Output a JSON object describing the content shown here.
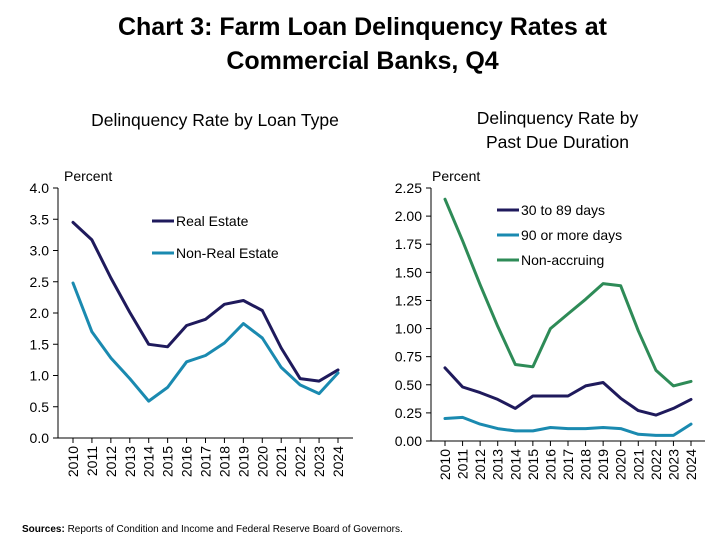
{
  "main_title_line1": "Chart 3: Farm Loan Delinquency Rates at",
  "main_title_line2": "Commercial Banks, Q4",
  "source_label": "Sources:",
  "source_text": "Reports of Condition and Income and Federal Reserve Board of Governors.",
  "colors": {
    "navy": "#1f1a5c",
    "teal": "#1a8ab0",
    "green": "#2e8b57",
    "axis": "#000000"
  },
  "chart_data": [
    {
      "type": "line",
      "title": "Delinquency Rate by Loan Type",
      "ylabel": "Percent",
      "xlabel": "",
      "x": [
        "2010",
        "2011",
        "2012",
        "2013",
        "2014",
        "2015",
        "2016",
        "2017",
        "2018",
        "2019",
        "2020",
        "2021",
        "2022",
        "2023",
        "2024"
      ],
      "ylim": [
        0,
        4.0
      ],
      "yticks": [
        "0.0",
        "0.5",
        "1.0",
        "1.5",
        "2.0",
        "2.5",
        "3.0",
        "3.5",
        "4.0"
      ],
      "grid": false,
      "legend": "top-right",
      "series": [
        {
          "name": "Real Estate",
          "color": "#1f1a5c",
          "values": [
            3.45,
            3.17,
            2.56,
            2.01,
            1.5,
            1.46,
            1.8,
            1.9,
            2.14,
            2.2,
            2.04,
            1.44,
            0.95,
            0.91,
            1.09
          ]
        },
        {
          "name": "Non-Real Estate",
          "color": "#1a8ab0",
          "values": [
            2.48,
            1.7,
            1.28,
            0.95,
            0.59,
            0.81,
            1.22,
            1.32,
            1.52,
            1.83,
            1.6,
            1.13,
            0.85,
            0.71,
            1.04
          ]
        }
      ]
    },
    {
      "type": "line",
      "title": "Delinquency Rate by Past Due Duration",
      "ylabel": "Percent",
      "xlabel": "",
      "x": [
        "2010",
        "2011",
        "2012",
        "2013",
        "2014",
        "2015",
        "2016",
        "2017",
        "2018",
        "2019",
        "2020",
        "2021",
        "2022",
        "2023",
        "2024"
      ],
      "ylim": [
        0,
        2.25
      ],
      "yticks": [
        "0.00",
        "0.25",
        "0.50",
        "0.75",
        "1.00",
        "1.25",
        "1.50",
        "1.75",
        "2.00",
        "2.25"
      ],
      "grid": false,
      "legend": "top-right",
      "series": [
        {
          "name": "30 to 89 days",
          "color": "#1f1a5c",
          "values": [
            0.65,
            0.48,
            0.43,
            0.37,
            0.29,
            0.4,
            0.4,
            0.4,
            0.49,
            0.52,
            0.38,
            0.27,
            0.23,
            0.29,
            0.37
          ]
        },
        {
          "name": "90 or more days",
          "color": "#1a8ab0",
          "values": [
            0.2,
            0.21,
            0.15,
            0.11,
            0.09,
            0.09,
            0.12,
            0.11,
            0.11,
            0.12,
            0.11,
            0.06,
            0.05,
            0.05,
            0.15
          ]
        },
        {
          "name": "Non-accruing",
          "color": "#2e8b57",
          "values": [
            2.15,
            1.78,
            1.39,
            1.02,
            0.68,
            0.66,
            1.0,
            1.13,
            1.26,
            1.4,
            1.38,
            0.98,
            0.63,
            0.49,
            0.53
          ]
        }
      ]
    }
  ]
}
